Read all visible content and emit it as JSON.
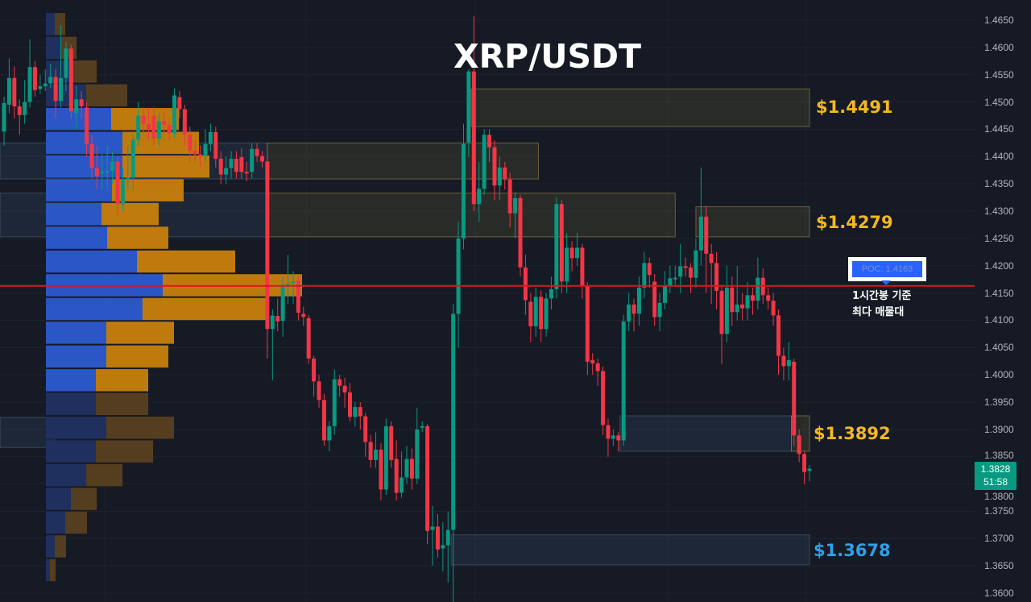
{
  "title": "XRP/USDT",
  "colors": {
    "background": "#161a25",
    "up": "#089981",
    "down": "#f23645",
    "poc_line": "#e0141e",
    "zone_label_yellow": "#f5b820",
    "zone_label_blue": "#2ea0e8",
    "vp_buy": "#2a56c6",
    "vp_sell": "#c8800c",
    "vp_buy_dim": "#1f305e",
    "vp_sell_dim": "#58401f"
  },
  "poc": {
    "label": "POC: 1.4163",
    "price": 1.4163,
    "note_line1": "1시간봉 기준",
    "note_line2": "최다 매물대"
  },
  "current_price": {
    "price": "1.3828",
    "countdown": "51:58",
    "value": 1.3828
  },
  "zone_labels": [
    {
      "text": "$1.4491",
      "price": 1.4491,
      "color": "yellow"
    },
    {
      "text": "$1.4279",
      "price": 1.4279,
      "color": "yellow"
    },
    {
      "text": "$1.3892",
      "price": 1.3892,
      "color": "yellow"
    },
    {
      "text": "$1.3678",
      "price": 1.3678,
      "color": "blue"
    }
  ],
  "chart_data": {
    "type": "candlestick",
    "symbol": "XRP/USDT",
    "ylim": [
      1.3575,
      1.4685
    ],
    "y_ticks": [
      "1.4650",
      "1.4600",
      "1.4550",
      "1.4500",
      "1.4450",
      "1.4400",
      "1.4350",
      "1.4300",
      "1.4250",
      "1.4200",
      "1.4150",
      "1.4100",
      "1.4050",
      "1.4000",
      "1.3950",
      "1.3900",
      "1.3850",
      "1.3800",
      "1.3750",
      "1.3700",
      "1.3650",
      "1.3600"
    ],
    "grid": true,
    "candles_ohlc": [
      [
        1.4446,
        1.451,
        1.442,
        1.4498
      ],
      [
        1.4495,
        1.458,
        1.448,
        1.4544
      ],
      [
        1.4544,
        1.4565,
        1.447,
        1.4492
      ],
      [
        1.4492,
        1.4505,
        1.444,
        1.4476
      ],
      [
        1.4476,
        1.454,
        1.446,
        1.45
      ],
      [
        1.45,
        1.4615,
        1.449,
        1.4564
      ],
      [
        1.4564,
        1.4575,
        1.451,
        1.4522
      ],
      [
        1.4524,
        1.455,
        1.4515,
        1.4529
      ],
      [
        1.4529,
        1.456,
        1.452,
        1.4534
      ],
      [
        1.4534,
        1.457,
        1.4525,
        1.4546
      ],
      [
        1.4546,
        1.456,
        1.447,
        1.4502
      ],
      [
        1.4502,
        1.464,
        1.449,
        1.4544
      ],
      [
        1.4544,
        1.461,
        1.452,
        1.4598
      ],
      [
        1.4598,
        1.4605,
        1.447,
        1.4483
      ],
      [
        1.448,
        1.453,
        1.445,
        1.4505
      ],
      [
        1.4505,
        1.452,
        1.447,
        1.4492
      ],
      [
        1.449,
        1.45,
        1.44,
        1.4423
      ],
      [
        1.4423,
        1.444,
        1.436,
        1.4379
      ],
      [
        1.4379,
        1.442,
        1.434,
        1.4364
      ],
      [
        1.4369,
        1.4405,
        1.434,
        1.4372
      ],
      [
        1.4372,
        1.442,
        1.434,
        1.4374
      ],
      [
        1.4374,
        1.441,
        1.435,
        1.4391
      ],
      [
        1.4391,
        1.44,
        1.429,
        1.4313
      ],
      [
        1.4313,
        1.438,
        1.43,
        1.4359
      ],
      [
        1.4359,
        1.442,
        1.434,
        1.4362
      ],
      [
        1.4362,
        1.444,
        1.434,
        1.4431
      ],
      [
        1.4431,
        1.45,
        1.442,
        1.4475
      ],
      [
        1.4475,
        1.449,
        1.444,
        1.446
      ],
      [
        1.446,
        1.449,
        1.443,
        1.445
      ],
      [
        1.4475,
        1.449,
        1.442,
        1.4433
      ],
      [
        1.4433,
        1.448,
        1.442,
        1.4465
      ],
      [
        1.4465,
        1.448,
        1.444,
        1.4458
      ],
      [
        1.4458,
        1.447,
        1.443,
        1.4443
      ],
      [
        1.4443,
        1.4525,
        1.4435,
        1.4512
      ],
      [
        1.4509,
        1.452,
        1.447,
        1.4487
      ],
      [
        1.4487,
        1.4495,
        1.442,
        1.444
      ],
      [
        1.444,
        1.4455,
        1.439,
        1.4411
      ],
      [
        1.4411,
        1.443,
        1.439,
        1.4404
      ],
      [
        1.4404,
        1.442,
        1.438,
        1.44
      ],
      [
        1.4401,
        1.445,
        1.439,
        1.4423
      ],
      [
        1.4423,
        1.446,
        1.441,
        1.4445
      ],
      [
        1.4445,
        1.4455,
        1.438,
        1.4396
      ],
      [
        1.4396,
        1.441,
        1.435,
        1.4367
      ],
      [
        1.4367,
        1.44,
        1.435,
        1.4379
      ],
      [
        1.4379,
        1.441,
        1.436,
        1.4396
      ],
      [
        1.4396,
        1.441,
        1.436,
        1.4372
      ],
      [
        1.4399,
        1.4415,
        1.436,
        1.4372
      ],
      [
        1.4372,
        1.439,
        1.4355,
        1.437
      ],
      [
        1.4372,
        1.4425,
        1.436,
        1.4414
      ],
      [
        1.4414,
        1.4425,
        1.439,
        1.4401
      ],
      [
        1.4401,
        1.441,
        1.438,
        1.4391
      ],
      [
        1.4391,
        1.44,
        1.403,
        1.4084
      ],
      [
        1.4084,
        1.412,
        1.399,
        1.4109
      ],
      [
        1.4108,
        1.414,
        1.408,
        1.4098
      ],
      [
        1.4099,
        1.418,
        1.407,
        1.4163
      ],
      [
        1.4166,
        1.422,
        1.413,
        1.4167
      ],
      [
        1.4168,
        1.419,
        1.413,
        1.4171
      ],
      [
        1.4172,
        1.418,
        1.41,
        1.4114
      ],
      [
        1.4112,
        1.4125,
        1.409,
        1.4106
      ],
      [
        1.4104,
        1.411,
        1.402,
        1.403
      ],
      [
        1.403,
        1.4035,
        1.396,
        1.3988
      ],
      [
        1.3988,
        1.4,
        1.394,
        1.3954
      ],
      [
        1.3954,
        1.3965,
        1.387,
        1.388
      ],
      [
        1.388,
        1.3915,
        1.386,
        1.3906
      ],
      [
        1.3906,
        1.401,
        1.389,
        1.3992
      ],
      [
        1.3992,
        1.4,
        1.396,
        1.398
      ],
      [
        1.398,
        1.3995,
        1.394,
        1.3968
      ],
      [
        1.3968,
        1.3985,
        1.3915,
        1.3923
      ],
      [
        1.3923,
        1.395,
        1.3905,
        1.3941
      ],
      [
        1.3941,
        1.395,
        1.39,
        1.3924
      ],
      [
        1.3924,
        1.393,
        1.385,
        1.3877
      ],
      [
        1.3877,
        1.389,
        1.383,
        1.3844
      ],
      [
        1.3844,
        1.3895,
        1.383,
        1.3863
      ],
      [
        1.3863,
        1.3875,
        1.377,
        1.379
      ],
      [
        1.379,
        1.392,
        1.378,
        1.3906
      ],
      [
        1.3906,
        1.3915,
        1.383,
        1.3844
      ],
      [
        1.3846,
        1.388,
        1.377,
        1.3784
      ],
      [
        1.3784,
        1.386,
        1.3775,
        1.3812
      ],
      [
        1.3812,
        1.387,
        1.38,
        1.3846
      ],
      [
        1.3846,
        1.3865,
        1.379,
        1.381
      ],
      [
        1.381,
        1.394,
        1.38,
        1.39
      ],
      [
        1.3903,
        1.3915,
        1.3895,
        1.3906
      ],
      [
        1.3906,
        1.391,
        1.369,
        1.3714
      ],
      [
        1.3716,
        1.376,
        1.365,
        1.3722
      ],
      [
        1.3722,
        1.3745,
        1.3665,
        1.368
      ],
      [
        1.3682,
        1.373,
        1.364,
        1.3688
      ],
      [
        1.3688,
        1.375,
        1.362,
        1.3716
      ],
      [
        1.3716,
        1.413,
        1.356,
        1.4112
      ],
      [
        1.4112,
        1.428,
        1.405,
        1.425
      ],
      [
        1.425,
        1.446,
        1.423,
        1.4423
      ],
      [
        1.4426,
        1.456,
        1.44,
        1.4556
      ],
      [
        1.4556,
        1.4657,
        1.43,
        1.4313
      ],
      [
        1.4313,
        1.439,
        1.428,
        1.4341
      ],
      [
        1.4341,
        1.445,
        1.433,
        1.444
      ],
      [
        1.444,
        1.445,
        1.439,
        1.4417
      ],
      [
        1.4417,
        1.443,
        1.432,
        1.4347
      ],
      [
        1.4347,
        1.44,
        1.432,
        1.438
      ],
      [
        1.438,
        1.439,
        1.434,
        1.4358
      ],
      [
        1.4358,
        1.437,
        1.427,
        1.4296
      ],
      [
        1.4296,
        1.4335,
        1.425,
        1.4324
      ],
      [
        1.4324,
        1.433,
        1.418,
        1.4197
      ],
      [
        1.4197,
        1.422,
        1.411,
        1.4137
      ],
      [
        1.4134,
        1.415,
        1.406,
        1.4089
      ],
      [
        1.4089,
        1.416,
        1.407,
        1.4143
      ],
      [
        1.4143,
        1.4155,
        1.406,
        1.4084
      ],
      [
        1.4084,
        1.415,
        1.407,
        1.414
      ],
      [
        1.414,
        1.418,
        1.412,
        1.4157
      ],
      [
        1.4157,
        1.4325,
        1.414,
        1.4313
      ],
      [
        1.4313,
        1.432,
        1.415,
        1.4171
      ],
      [
        1.4171,
        1.426,
        1.415,
        1.4233
      ],
      [
        1.4233,
        1.4245,
        1.419,
        1.4214
      ],
      [
        1.4214,
        1.426,
        1.42,
        1.4233
      ],
      [
        1.4233,
        1.424,
        1.414,
        1.4163
      ],
      [
        1.4163,
        1.417,
        1.4,
        1.4024
      ],
      [
        1.4027,
        1.404,
        1.4,
        1.4021
      ],
      [
        1.4021,
        1.403,
        1.398,
        1.4007
      ],
      [
        1.4007,
        1.4015,
        1.389,
        1.3908
      ],
      [
        1.3908,
        1.392,
        1.385,
        1.3883
      ],
      [
        1.3883,
        1.39,
        1.387,
        1.3889
      ],
      [
        1.3889,
        1.3895,
        1.386,
        1.388
      ],
      [
        1.388,
        1.411,
        1.387,
        1.4098
      ],
      [
        1.4098,
        1.415,
        1.408,
        1.4129
      ],
      [
        1.4129,
        1.414,
        1.408,
        1.4112
      ],
      [
        1.4112,
        1.418,
        1.409,
        1.416
      ],
      [
        1.416,
        1.4225,
        1.414,
        1.4205
      ],
      [
        1.4205,
        1.4215,
        1.416,
        1.4183
      ],
      [
        1.4171,
        1.4185,
        1.409,
        1.4106
      ],
      [
        1.4106,
        1.415,
        1.408,
        1.4132
      ],
      [
        1.4132,
        1.419,
        1.412,
        1.4163
      ],
      [
        1.4163,
        1.42,
        1.415,
        1.4177
      ],
      [
        1.4177,
        1.42,
        1.4165,
        1.4178
      ],
      [
        1.418,
        1.424,
        1.415,
        1.4199
      ],
      [
        1.4199,
        1.4215,
        1.418,
        1.4197
      ],
      [
        1.4197,
        1.4205,
        1.415,
        1.4178
      ],
      [
        1.4178,
        1.425,
        1.416,
        1.4228
      ],
      [
        1.4228,
        1.438,
        1.42,
        1.429
      ],
      [
        1.429,
        1.431,
        1.415,
        1.4222
      ],
      [
        1.4222,
        1.424,
        1.413,
        1.4205
      ],
      [
        1.4205,
        1.4225,
        1.412,
        1.4154
      ],
      [
        1.4154,
        1.4165,
        1.402,
        1.4075
      ],
      [
        1.4075,
        1.42,
        1.406,
        1.416
      ],
      [
        1.416,
        1.418,
        1.409,
        1.4115
      ],
      [
        1.4115,
        1.42,
        1.41,
        1.4129
      ],
      [
        1.4129,
        1.415,
        1.41,
        1.4122
      ],
      [
        1.4122,
        1.417,
        1.41,
        1.4146
      ],
      [
        1.4146,
        1.416,
        1.411,
        1.4136
      ],
      [
        1.4136,
        1.4215,
        1.412,
        1.4178
      ],
      [
        1.4178,
        1.4195,
        1.413,
        1.4146
      ],
      [
        1.4146,
        1.416,
        1.412,
        1.4136
      ],
      [
        1.4136,
        1.415,
        1.409,
        1.4109
      ],
      [
        1.4109,
        1.412,
        1.4,
        1.4035
      ],
      [
        1.4035,
        1.405,
        1.399,
        1.4016
      ],
      [
        1.4016,
        1.406,
        1.399,
        1.4027
      ],
      [
        1.4024,
        1.403,
        1.387,
        1.3889
      ],
      [
        1.3889,
        1.39,
        1.384,
        1.3855
      ],
      [
        1.3855,
        1.386,
        1.38,
        1.3822
      ],
      [
        1.3824,
        1.3835,
        1.3805,
        1.3828
      ]
    ],
    "zones": [
      {
        "from": 90.5,
        "to": 156,
        "high": 1.4524,
        "low": 1.4455,
        "style": "yellow"
      },
      {
        "from": -1,
        "to": 51,
        "high": 1.4425,
        "low": 1.4359,
        "style": "blue"
      },
      {
        "from": 51,
        "to": 103.5,
        "high": 1.4425,
        "low": 1.4359,
        "style": "yellow"
      },
      {
        "from": -1,
        "to": 51,
        "high": 1.4333,
        "low": 1.4253,
        "style": "blue"
      },
      {
        "from": 51,
        "to": 130,
        "high": 1.4333,
        "low": 1.4253,
        "style": "yellow"
      },
      {
        "from": 134,
        "to": 156,
        "high": 1.4308,
        "low": 1.4253,
        "style": "yellow"
      },
      {
        "from": 119.3,
        "to": 152.5,
        "high": 1.3925,
        "low": 1.386,
        "style": "blue"
      },
      {
        "from": 152.5,
        "to": 156,
        "high": 1.3925,
        "low": 1.386,
        "style": "yellow"
      },
      {
        "from": -1,
        "to": 9.8,
        "high": 1.3922,
        "low": 1.3867,
        "style": "blue"
      },
      {
        "from": 86.6,
        "to": 156,
        "high": 1.3707,
        "low": 1.3652,
        "style": "blue"
      }
    ],
    "volume_profile": {
      "top_price": 1.4663,
      "row_size": 0.00435,
      "rows": [
        {
          "buy": 11,
          "sell": 13,
          "value_area": false
        },
        {
          "buy": 18,
          "sell": 20,
          "value_area": false
        },
        {
          "buy": 33,
          "sell": 30,
          "value_area": false
        },
        {
          "buy": 50,
          "sell": 51,
          "value_area": false
        },
        {
          "buy": 81,
          "sell": 84,
          "value_area": true
        },
        {
          "buy": 95,
          "sell": 95,
          "value_area": true
        },
        {
          "buy": 95,
          "sell": 108,
          "value_area": true
        },
        {
          "buy": 82,
          "sell": 89,
          "value_area": true
        },
        {
          "buy": 69,
          "sell": 71,
          "value_area": true
        },
        {
          "buy": 76,
          "sell": 76,
          "value_area": true
        },
        {
          "buy": 113,
          "sell": 122,
          "value_area": true
        },
        {
          "buy": 145,
          "sell": 173,
          "value_area": true
        },
        {
          "buy": 120,
          "sell": 153,
          "value_area": true
        },
        {
          "buy": 75,
          "sell": 84,
          "value_area": true
        },
        {
          "buy": 75,
          "sell": 77,
          "value_area": true
        },
        {
          "buy": 62,
          "sell": 65,
          "value_area": true
        },
        {
          "buy": 62,
          "sell": 65,
          "value_area": false
        },
        {
          "buy": 75,
          "sell": 84,
          "value_area": false
        },
        {
          "buy": 62,
          "sell": 71,
          "value_area": false
        },
        {
          "buy": 50,
          "sell": 45,
          "value_area": false
        },
        {
          "buy": 31,
          "sell": 32,
          "value_area": false
        },
        {
          "buy": 24,
          "sell": 27,
          "value_area": false
        },
        {
          "buy": 11,
          "sell": 14,
          "value_area": false
        },
        {
          "buy": 5,
          "sell": 7,
          "value_area": false
        }
      ]
    }
  }
}
